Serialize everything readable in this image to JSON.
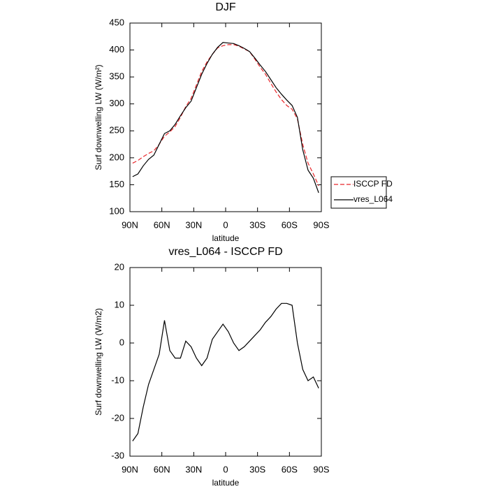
{
  "chart_data": [
    {
      "type": "line",
      "title": "DJF",
      "x_label": "latitude",
      "y_label": "Surf downwelling LW (W/m²)",
      "x": [
        87.5,
        82.5,
        77.5,
        72.5,
        67.5,
        62.5,
        57.5,
        52.5,
        47.5,
        42.5,
        37.5,
        32.5,
        27.5,
        22.5,
        17.5,
        12.5,
        7.5,
        2.5,
        -2.5,
        -7.5,
        -12.5,
        -17.5,
        -22.5,
        -27.5,
        -32.5,
        -37.5,
        -42.5,
        -47.5,
        -52.5,
        -57.5,
        -62.5,
        -67.5,
        -72.5,
        -77.5,
        -82.5,
        -87.5
      ],
      "series": [
        {
          "name": "ISCCP FD",
          "color": "#e8262a",
          "dash": "dashed",
          "values": [
            190,
            195,
            202,
            208,
            213,
            225,
            240,
            248,
            258,
            275,
            295,
            310,
            335,
            360,
            378,
            392,
            404,
            408,
            410,
            410,
            407,
            402,
            397,
            383,
            368,
            355,
            338,
            322,
            308,
            297,
            290,
            272,
            225,
            190,
            170,
            148
          ]
        },
        {
          "name": "vres_L064",
          "color": "#000000",
          "dash": "solid",
          "values": [
            165,
            170,
            185,
            197,
            205,
            225,
            245,
            250,
            262,
            278,
            293,
            305,
            330,
            355,
            375,
            392,
            405,
            414,
            413,
            412,
            408,
            403,
            397,
            385,
            372,
            360,
            345,
            330,
            318,
            307,
            297,
            275,
            215,
            177,
            162,
            135
          ]
        }
      ],
      "xlim": [
        90,
        -90
      ],
      "xticks": [
        {
          "value": 90,
          "label": "90N"
        },
        {
          "value": 60,
          "label": "60N"
        },
        {
          "value": 30,
          "label": "30N"
        },
        0,
        {
          "value": -30,
          "label": "30S"
        },
        {
          "value": -60,
          "label": "60S"
        },
        {
          "value": -90,
          "label": "90S"
        }
      ],
      "ylim": [
        100,
        450
      ],
      "yticks": [
        100,
        150,
        200,
        250,
        300,
        350,
        400,
        450
      ],
      "legend": "outside-right"
    },
    {
      "type": "line",
      "title": "vres_L064 - ISCCP FD",
      "x_label": "latitude",
      "y_label": "Surf downwelling LW (W/m2)",
      "x": [
        87.5,
        82.5,
        77.5,
        72.5,
        67.5,
        62.5,
        57.5,
        52.5,
        47.5,
        42.5,
        37.5,
        32.5,
        27.5,
        22.5,
        17.5,
        12.5,
        7.5,
        2.5,
        -2.5,
        -7.5,
        -12.5,
        -17.5,
        -22.5,
        -27.5,
        -32.5,
        -37.5,
        -42.5,
        -47.5,
        -52.5,
        -57.5,
        -62.5,
        -67.5,
        -72.5,
        -77.5,
        -82.5,
        -87.5
      ],
      "values": [
        -26,
        -24,
        -17,
        -11,
        -7,
        -3,
        6,
        -2,
        -4,
        -4,
        0.5,
        -1,
        -4,
        -6,
        -4,
        1,
        3,
        5,
        3,
        0,
        -2,
        -1,
        0.5,
        2,
        3.5,
        5.5,
        7,
        9,
        10.5,
        10.5,
        10,
        0,
        -7,
        -10,
        -9,
        -12
      ],
      "color": "#000000",
      "xlim": [
        90,
        -90
      ],
      "xticks": [
        {
          "value": 90,
          "label": "90N"
        },
        {
          "value": 60,
          "label": "60N"
        },
        {
          "value": 30,
          "label": "30N"
        },
        0,
        {
          "value": -30,
          "label": "30S"
        },
        {
          "value": -60,
          "label": "60S"
        },
        {
          "value": -90,
          "label": "90S"
        }
      ],
      "ylim": [
        -30,
        20
      ],
      "yticks": [
        -30,
        -20,
        -10,
        0,
        10,
        20
      ]
    }
  ]
}
